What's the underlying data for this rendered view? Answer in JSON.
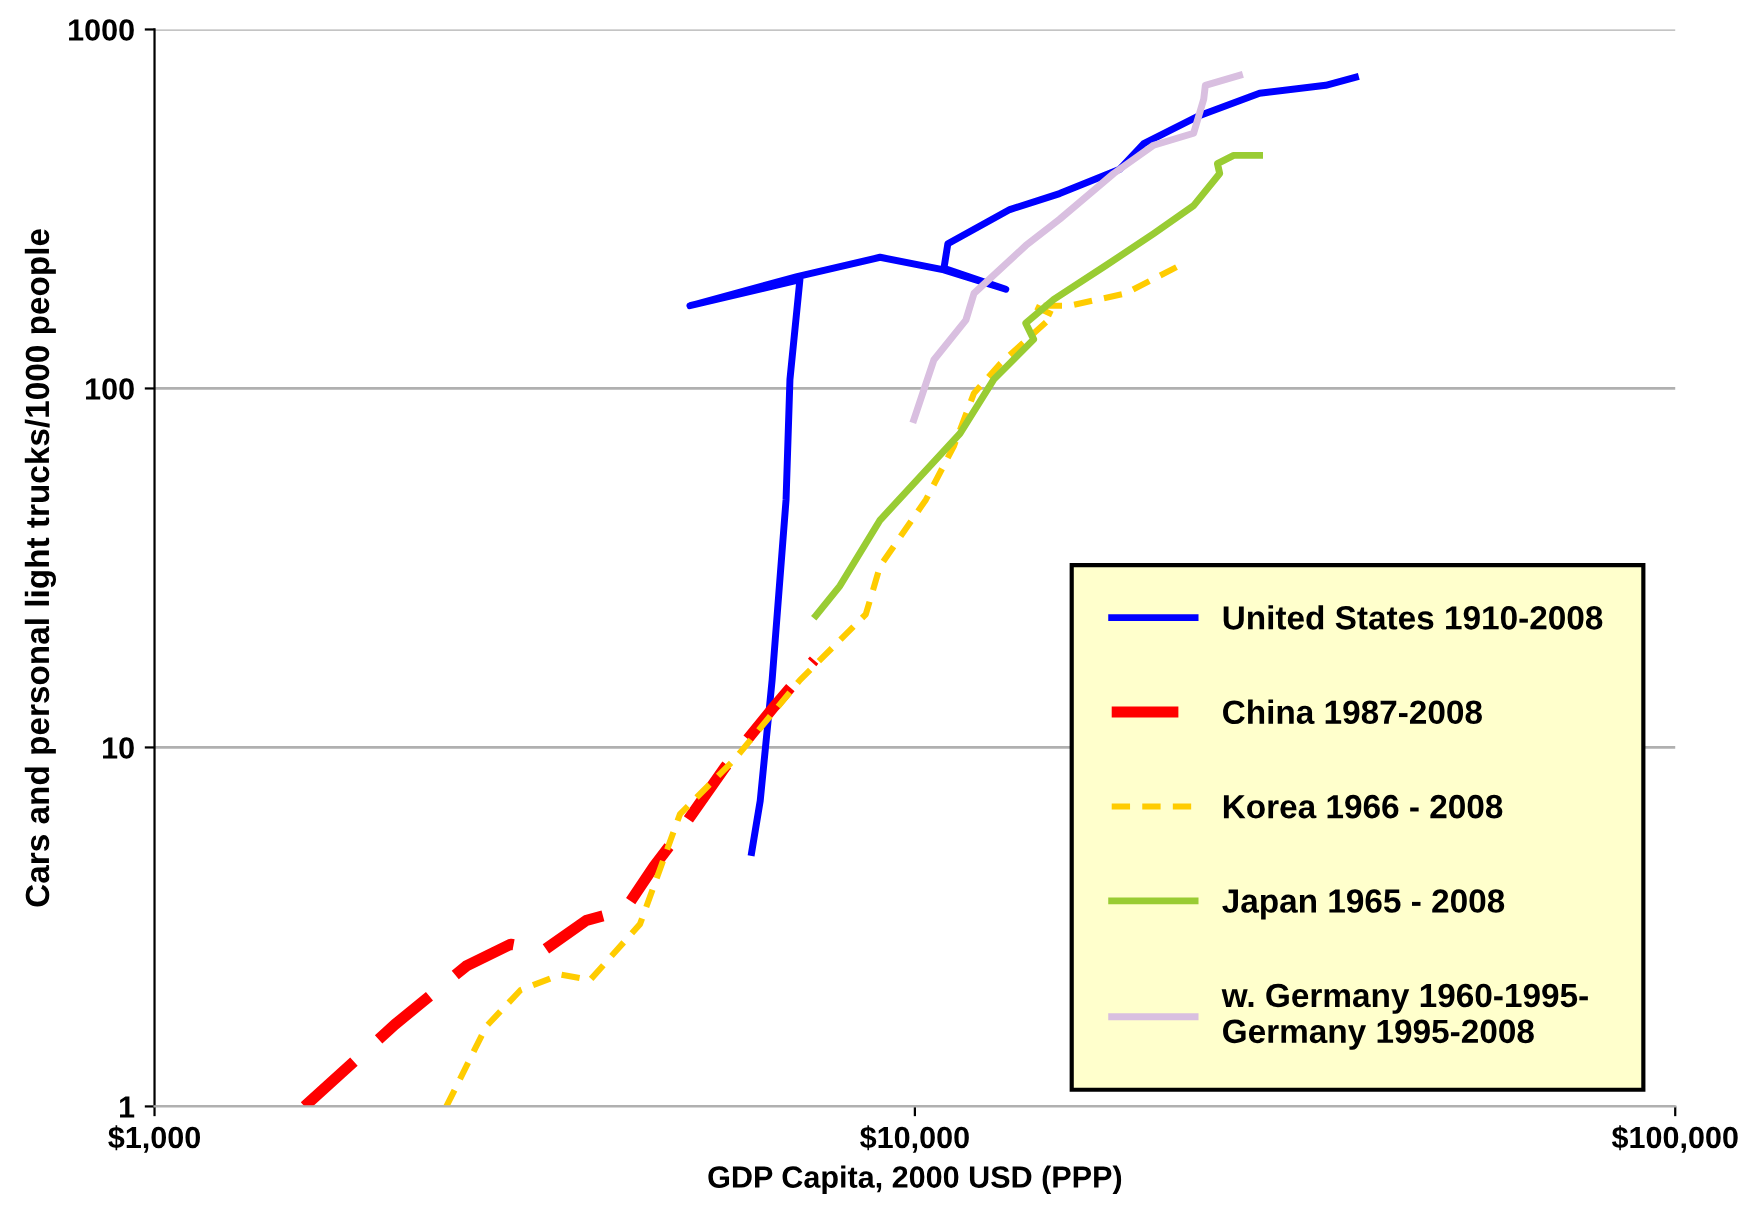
{
  "chart_data": {
    "type": "line",
    "xlabel": "GDP Capita, 2000 USD (PPP)",
    "ylabel": "Cars and personal light trucks/1000 people",
    "log": "xy",
    "xlim": [
      1000,
      100000
    ],
    "ylim": [
      1,
      1000
    ],
    "xticks": [
      {
        "value": 1000,
        "label": "$1,000"
      },
      {
        "value": 10000,
        "label": "$10,000"
      },
      {
        "value": 100000,
        "label": "$100,000"
      }
    ],
    "yticks": [
      1,
      10,
      100,
      1000
    ],
    "grid": "y",
    "legend": "bottom right",
    "series": [
      {
        "name": "United States 1910-2008",
        "color": "#0000ff",
        "line_style": "solid",
        "x": [
          6100,
          6260,
          6490,
          6770,
          6850,
          7060,
          5060,
          7000,
          9000,
          10920,
          13170,
          10920,
          11050,
          13330,
          15500,
          18600,
          20000,
          23700,
          28400,
          34700,
          37970
        ],
        "values": [
          5.1,
          7.1,
          15.4,
          49,
          106,
          201,
          170,
          205,
          232,
          214,
          189,
          216,
          253,
          315,
          349,
          408,
          481,
          576,
          664,
          699,
          736
        ]
      },
      {
        "name": "China 1987-2008",
        "color": "#ff0000",
        "line_style": "dashed",
        "x": [
          1575,
          2070,
          2570,
          2940,
          3250,
          3700,
          4150,
          4540,
          4820,
          5640,
          6530,
          7370
        ],
        "values": [
          1,
          1.69,
          2.46,
          2.83,
          2.72,
          3.3,
          3.52,
          4.67,
          5.52,
          8.87,
          13,
          17.5
        ]
      },
      {
        "name": "Korea 1966 - 2008",
        "color": "#ffcc00",
        "line_style": "dotted",
        "x": [
          2420,
          2730,
          3030,
          3420,
          3740,
          4350,
          4910,
          5780,
          7060,
          8620,
          9000,
          10340,
          11250,
          11960,
          12940,
          15230,
          14330,
          16000,
          18930,
          22290
        ],
        "values": [
          1,
          1.67,
          2.11,
          2.33,
          2.25,
          3.22,
          6.52,
          9.22,
          15.4,
          23.5,
          32,
          49,
          69,
          97,
          117,
          160,
          170,
          170,
          184,
          220
        ]
      },
      {
        "name": "Japan 1965 - 2008",
        "color": "#99cc33",
        "line_style": "solid",
        "x": [
          7410,
          7970,
          9000,
          11460,
          12700,
          14330,
          13990,
          15230,
          17830,
          20610,
          23260,
          25170,
          25000,
          26260,
          28400
        ],
        "values": [
          23.3,
          28.2,
          43,
          74.8,
          106,
          137,
          152,
          177,
          220,
          270,
          323,
          397,
          423,
          446,
          446
        ]
      },
      {
        "name": "w. Germany 1960-1995-\nGermany 1995-2008",
        "color": "#d9bfe0",
        "line_style": "solid",
        "x": [
          9970,
          10590,
          11670,
          11960,
          13990,
          15500,
          18260,
          20610,
          23260,
          23980,
          24100,
          26730
        ],
        "values": [
          81.9,
          120,
          155,
          184,
          250,
          296,
          397,
          476,
          514,
          639,
          699,
          745
        ]
      }
    ]
  }
}
